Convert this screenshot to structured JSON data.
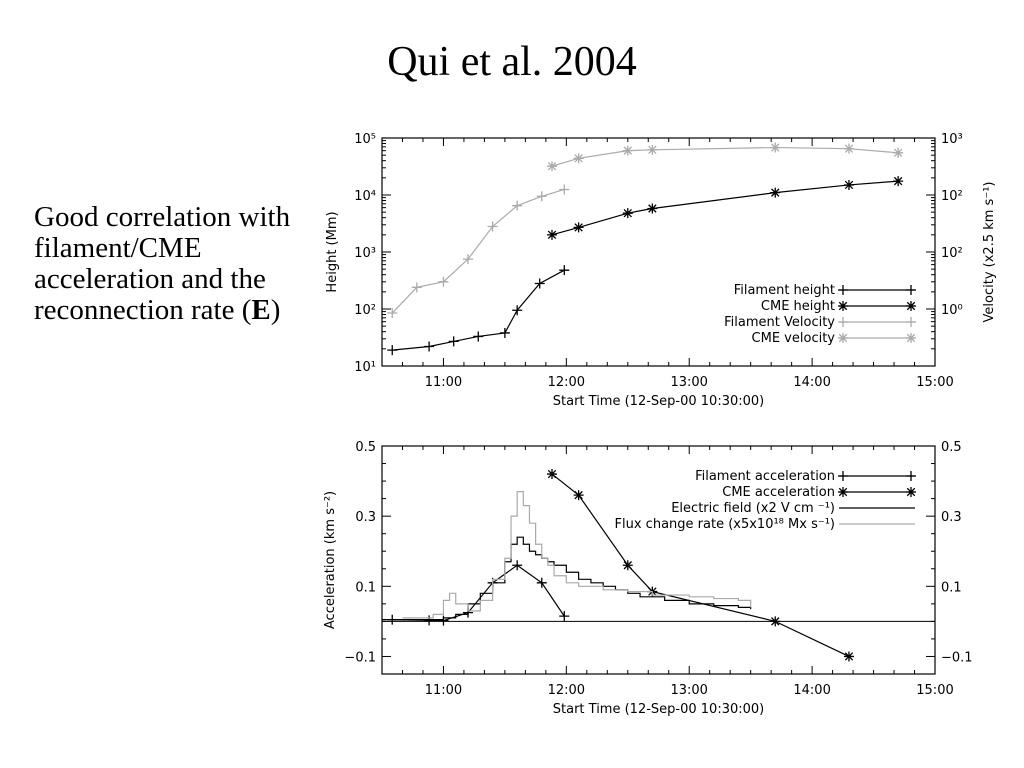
{
  "slide": {
    "title": "Qui et al. 2004",
    "side_text": "Good correlation with filament/CME acceleration and the reconnection rate (",
    "side_text_bold": "E",
    "side_text_close": ")"
  },
  "chart_data": [
    {
      "type": "line",
      "title": "",
      "xlabel": "Start Time (12-Sep-00 10:30:00)",
      "ylabel": "Height (Mm)",
      "ylabel_right": "Velocity (x2.5 km s⁻¹)",
      "x_ticks": [
        "11:00",
        "12:00",
        "13:00",
        "14:00",
        "15:00"
      ],
      "xlim": [
        "10:30",
        "15:00"
      ],
      "y_scale": "log",
      "ylim": [
        10,
        100000
      ],
      "y_tick_labels": [
        "10¹",
        "10²",
        "10³",
        "10⁴",
        "10⁵"
      ],
      "y_right_tick_labels": [
        "10⁰",
        "10²",
        "10²",
        "10³"
      ],
      "legend_position": "lower-right",
      "series": [
        {
          "name": "Filament height",
          "color": "#000000",
          "marker": "plus",
          "x": [
            "10:35",
            "10:53",
            "11:05",
            "11:17",
            "11:30",
            "11:36",
            "11:47",
            "11:59"
          ],
          "y": [
            19,
            22,
            27,
            33,
            38,
            95,
            280,
            480
          ]
        },
        {
          "name": "CME height",
          "color": "#000000",
          "marker": "asterisk",
          "x": [
            "11:53",
            "12:06",
            "12:30",
            "12:42",
            "13:42",
            "14:18",
            "14:42"
          ],
          "y": [
            2000,
            2700,
            4800,
            5800,
            11000,
            15000,
            17500
          ]
        },
        {
          "name": "Filament Velocity",
          "color": "#aaaaaa",
          "marker": "plus",
          "x": [
            "10:35",
            "10:47",
            "11:00",
            "11:12",
            "11:24",
            "11:36",
            "11:48",
            "11:59"
          ],
          "y": [
            85,
            240,
            300,
            750,
            2800,
            6500,
            9500,
            12500
          ]
        },
        {
          "name": "CME velocity",
          "color": "#aaaaaa",
          "marker": "asterisk",
          "x": [
            "11:53",
            "12:06",
            "12:30",
            "12:42",
            "13:42",
            "14:18",
            "14:42"
          ],
          "y": [
            32000,
            44000,
            60000,
            62000,
            68000,
            65000,
            55000
          ]
        }
      ]
    },
    {
      "type": "line",
      "title": "",
      "xlabel": "Start Time (12-Sep-00 10:30:00)",
      "ylabel": "Acceleration (km s⁻²)",
      "x_ticks": [
        "11:00",
        "12:00",
        "13:00",
        "14:00",
        "15:00"
      ],
      "xlim": [
        "10:30",
        "15:00"
      ],
      "ylim": [
        -0.15,
        0.5
      ],
      "y_tick_labels": [
        "−0.1",
        "0.1",
        "0.3",
        "0.5"
      ],
      "y_right_tick_labels": [
        "−0.1",
        "0.1",
        "0.3",
        "0.5"
      ],
      "legend_position": "top-right",
      "zero_line": 0,
      "series": [
        {
          "name": "Filament acceleration",
          "color": "#000000",
          "marker": "plus",
          "x": [
            "10:35",
            "10:53",
            "11:00",
            "11:12",
            "11:24",
            "11:36",
            "11:48",
            "11:59"
          ],
          "y": [
            0.005,
            0.003,
            0.002,
            0.025,
            0.11,
            0.16,
            0.11,
            0.015
          ]
        },
        {
          "name": "CME acceleration",
          "color": "#000000",
          "marker": "asterisk",
          "x": [
            "11:53",
            "12:06",
            "12:30",
            "12:42",
            "13:42",
            "14:18"
          ],
          "y": [
            0.42,
            0.36,
            0.16,
            0.085,
            0.0,
            -0.1
          ]
        },
        {
          "name": "Electric field (x2 V cm ⁻¹)",
          "color": "#000000",
          "marker": "step",
          "x": [
            "10:30",
            "11:00",
            "11:06",
            "11:12",
            "11:18",
            "11:24",
            "11:30",
            "11:33",
            "11:36",
            "11:39",
            "11:42",
            "11:45",
            "11:48",
            "11:51",
            "11:54",
            "12:00",
            "12:06",
            "12:12",
            "12:18",
            "12:24",
            "12:30",
            "12:36",
            "12:48",
            "13:00",
            "13:12",
            "13:24",
            "13:30"
          ],
          "y": [
            0.005,
            0.01,
            0.02,
            0.05,
            0.08,
            0.11,
            0.17,
            0.22,
            0.24,
            0.22,
            0.2,
            0.19,
            0.18,
            0.17,
            0.16,
            0.14,
            0.12,
            0.11,
            0.1,
            0.09,
            0.08,
            0.07,
            0.06,
            0.05,
            0.045,
            0.04,
            0.035
          ]
        },
        {
          "name": "Flux change rate (x5x10¹⁸ Mx s⁻¹)",
          "color": "#aaaaaa",
          "marker": "step",
          "x": [
            "10:40",
            "10:55",
            "11:00",
            "11:03",
            "11:06",
            "11:12",
            "11:18",
            "11:24",
            "11:30",
            "11:33",
            "11:36",
            "11:39",
            "11:42",
            "11:45",
            "11:48",
            "11:51",
            "11:54",
            "12:00",
            "12:06",
            "12:18",
            "12:30",
            "12:42",
            "13:00",
            "13:12",
            "13:24",
            "13:30"
          ],
          "y": [
            0.01,
            0.02,
            0.06,
            0.08,
            0.05,
            0.03,
            0.06,
            0.12,
            0.18,
            0.3,
            0.37,
            0.33,
            0.28,
            0.22,
            0.18,
            0.16,
            0.13,
            0.11,
            0.1,
            0.09,
            0.085,
            0.075,
            0.07,
            0.065,
            0.06,
            0.04
          ]
        }
      ]
    }
  ]
}
